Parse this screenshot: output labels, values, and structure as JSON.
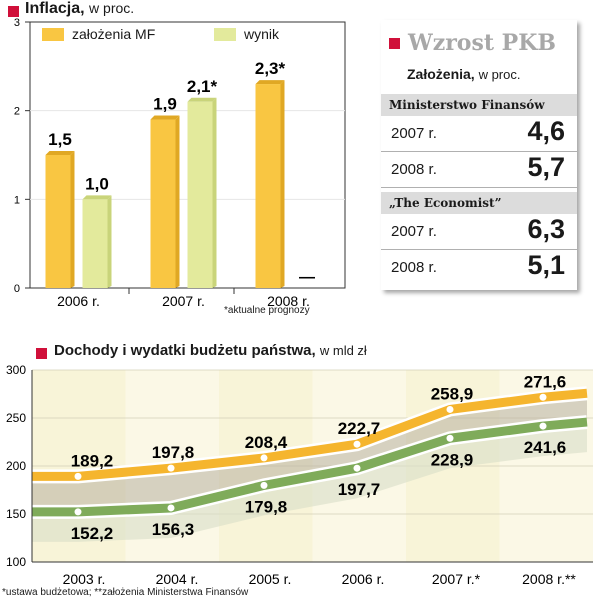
{
  "inflation": {
    "title": "Inflacja,",
    "subtitle": "w proc.",
    "legend": [
      "założenia MF",
      "wynik"
    ],
    "footnote": "*aktualne prognozy",
    "colors": {
      "mf": "#f9c642",
      "wynik": "#e3ea9c",
      "mf_dark": "#e0a824",
      "wynik_dark": "#c9d47a"
    },
    "chart_data": {
      "type": "bar",
      "title": "Inflacja, w proc.",
      "categories": [
        "2006 r.",
        "2007 r.",
        "2008 r."
      ],
      "ylim": [
        0,
        3
      ],
      "yticks": [
        "0",
        "1",
        "2",
        "3"
      ],
      "series": [
        {
          "name": "założenia MF",
          "values": [
            1.5,
            1.9,
            2.3
          ],
          "labels": [
            "1,5",
            "1,9",
            "2,3*"
          ]
        },
        {
          "name": "wynik",
          "values": [
            1.0,
            2.1,
            null
          ],
          "labels": [
            "1,0",
            "2,1*",
            "—"
          ]
        }
      ]
    }
  },
  "pkb": {
    "title": "Wzrost PKB",
    "subtitle_bold": "Założenia,",
    "subtitle": "w proc.",
    "groups": [
      {
        "source": "Ministerstwo Finansów",
        "rows": [
          {
            "year": "2007 r.",
            "value": "4,6"
          },
          {
            "year": "2008 r.",
            "value": "5,7"
          }
        ]
      },
      {
        "source": "„The Economist”",
        "rows": [
          {
            "year": "2007 r.",
            "value": "6,3"
          },
          {
            "year": "2008 r.",
            "value": "5,1"
          }
        ]
      }
    ]
  },
  "budget": {
    "title": "Dochody i wydatki budżetu państwa,",
    "subtitle": "w mld zł",
    "footnote": "*ustawa budżetowa; **założenia Ministerstwa Finansów",
    "colors": {
      "wydatki": "#f5b52e",
      "dochody": "#7fab5a",
      "cream": "#f8f4d8",
      "band": "#d8ddc8",
      "gap": "#b8b0a0"
    },
    "chart_data": {
      "type": "line",
      "title": "Dochody i wydatki budżetu państwa, w mld zł",
      "x": [
        "2003 r.",
        "2004 r.",
        "2005 r.",
        "2006 r.",
        "2007 r.*",
        "2008 r.**"
      ],
      "ylim": [
        100,
        300
      ],
      "yticks": [
        "100",
        "150",
        "200",
        "250",
        "300"
      ],
      "series": [
        {
          "name": "wydatki",
          "values": [
            189.2,
            197.8,
            208.4,
            222.7,
            258.9,
            271.6
          ],
          "labels": [
            "189,2",
            "197,8",
            "208,4",
            "222,7",
            "258,9",
            "271,6"
          ]
        },
        {
          "name": "dochody",
          "values": [
            152.2,
            156.3,
            179.8,
            197.7,
            228.9,
            241.6
          ],
          "labels": [
            "152,2",
            "156,3",
            "179,8",
            "197,7",
            "228,9",
            "241,6"
          ]
        }
      ]
    }
  }
}
